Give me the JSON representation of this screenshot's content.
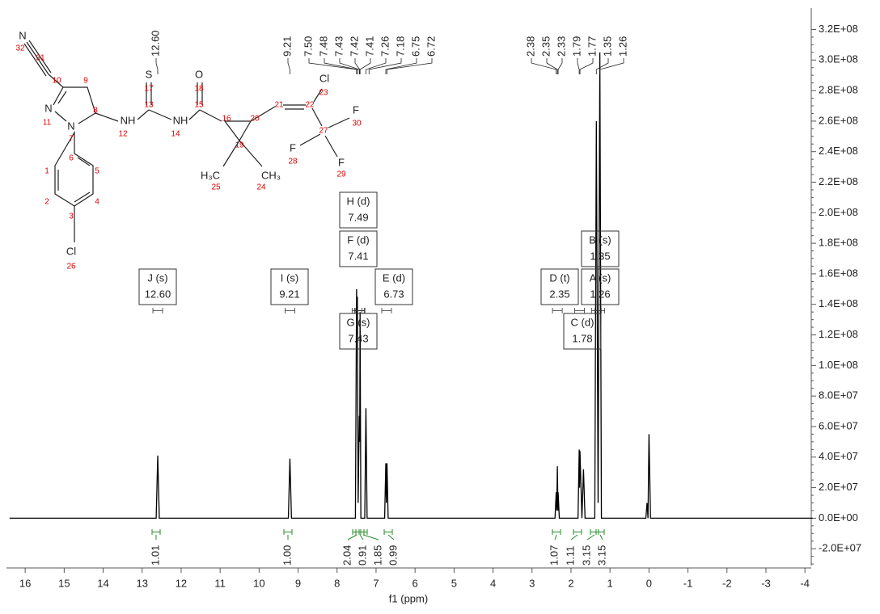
{
  "chart_data": {
    "type": "nmr",
    "xlabel": "f1 (ppm)",
    "color": "#000000",
    "xlim": [
      16.48,
      -4.1
    ],
    "ylim": [
      -31000000,
      334000000
    ],
    "xticks": [
      16,
      15,
      14,
      13,
      12,
      11,
      10,
      9,
      8,
      7,
      6,
      5,
      4,
      3,
      2,
      1,
      0,
      -1,
      -2,
      -3,
      -4
    ],
    "yticks": [
      {
        "value": 320000000,
        "label": "3.2E+08"
      },
      {
        "value": 300000000,
        "label": "3.0E+08"
      },
      {
        "value": 280000000,
        "label": "2.8E+08"
      },
      {
        "value": 260000000,
        "label": "2.6E+08"
      },
      {
        "value": 240000000,
        "label": "2.4E+08"
      },
      {
        "value": 220000000,
        "label": "2.2E+08"
      },
      {
        "value": 200000000,
        "label": "2.0E+08"
      },
      {
        "value": 180000000,
        "label": "1.8E+08"
      },
      {
        "value": 160000000,
        "label": "1.6E+08"
      },
      {
        "value": 140000000,
        "label": "1.4E+08"
      },
      {
        "value": 120000000,
        "label": "1.2E+08"
      },
      {
        "value": 100000000,
        "label": "1.0E+08"
      },
      {
        "value": 80000000,
        "label": "8.0E+07"
      },
      {
        "value": 60000000,
        "label": "6.0E+07"
      },
      {
        "value": 40000000,
        "label": "4.0E+07"
      },
      {
        "value": 20000000,
        "label": "2.0E+07"
      },
      {
        "value": 0,
        "label": "0.0E+00"
      },
      {
        "value": -20000000,
        "label": "-2.0E+07"
      }
    ],
    "x": [
      16.4,
      12.64,
      12.6,
      12.56,
      9.25,
      9.21,
      9.17,
      7.53,
      7.5,
      7.49,
      7.48,
      7.46,
      7.43,
      7.42,
      7.41,
      7.39,
      7.29,
      7.26,
      7.23,
      6.78,
      6.75,
      6.735,
      6.72,
      6.69,
      2.41,
      2.38,
      2.365,
      2.35,
      2.335,
      2.33,
      2.3,
      1.82,
      1.79,
      1.78,
      1.77,
      1.72,
      1.68,
      1.64,
      1.39,
      1.35,
      1.305,
      1.26,
      1.22,
      0.08,
      0.05,
      0.025,
      0,
      -0.04,
      -4.2
    ],
    "values": [
      0,
      0,
      41000000,
      0,
      0,
      39000000,
      0,
      0,
      150000000,
      120000000,
      145000000,
      10000000,
      67000000,
      50000000,
      135000000,
      0,
      0,
      72000000,
      0,
      0,
      36000000,
      10000000,
      36000000,
      0,
      0,
      17000000,
      5000000,
      34000000,
      5000000,
      17000000,
      0,
      0,
      45000000,
      20000000,
      44000000,
      0,
      32000000,
      0,
      0,
      260000000,
      10000000,
      305000000,
      0,
      0,
      10000000,
      0,
      55000000,
      0,
      0
    ],
    "peak_labels": [
      {
        "value": 12.6,
        "label": "12.60"
      },
      {
        "value": 9.21,
        "label": "9.21"
      },
      {
        "value": 7.5,
        "label": "7.50"
      },
      {
        "value": 7.48,
        "label": "7.48"
      },
      {
        "value": 7.43,
        "label": "7.43"
      },
      {
        "value": 7.42,
        "label": "7.42"
      },
      {
        "value": 7.41,
        "label": "7.41"
      },
      {
        "value": 7.26,
        "label": "7.26"
      },
      {
        "value": 7.18,
        "label": "7.18"
      },
      {
        "value": 6.75,
        "label": "6.75"
      },
      {
        "value": 6.72,
        "label": "6.72"
      },
      {
        "value": 2.38,
        "label": "2.38"
      },
      {
        "value": 2.35,
        "label": "2.35"
      },
      {
        "value": 2.33,
        "label": "2.33"
      },
      {
        "value": 1.79,
        "label": "1.79"
      },
      {
        "value": 1.77,
        "label": "1.77"
      },
      {
        "value": 1.35,
        "label": "1.35"
      },
      {
        "value": 1.26,
        "label": "1.26"
      }
    ],
    "multiplets": [
      {
        "name": "J (s)",
        "value": 12.6,
        "value_label": "12.60"
      },
      {
        "name": "I (s)",
        "value": 9.21,
        "value_label": "9.21"
      },
      {
        "name": "H (d)",
        "value": 7.49,
        "value_label": "7.49"
      },
      {
        "name": "F (d)",
        "value": 7.41,
        "value_label": "7.41"
      },
      {
        "name": "E (d)",
        "value": 6.73,
        "value_label": "6.73"
      },
      {
        "name": "G (s)",
        "value": 7.43,
        "value_label": "7.43"
      },
      {
        "name": "D (t)",
        "value": 2.35,
        "value_label": "2.35"
      },
      {
        "name": "B (s)",
        "value": 1.35,
        "value_label": "1.35"
      },
      {
        "name": "A (s)",
        "value": 1.26,
        "value_label": "1.26"
      },
      {
        "name": "C (d)",
        "value": 1.78,
        "value_label": "1.78"
      }
    ],
    "integrals": {
      "values": [
        1.01,
        1.0,
        2.04,
        0.91,
        1.85,
        0.99,
        1.07,
        1.11,
        3.15,
        3.15
      ],
      "value_labels": [
        "1.01",
        "1.00",
        "2.04",
        "0.91",
        "1.85",
        "0.99",
        "1.07",
        "1.11",
        "3.15",
        "3.15"
      ]
    },
    "molecule": {
      "atoms": [
        "N",
        "N",
        "N",
        "NH",
        "S",
        "NH",
        "O",
        "Cl",
        "Cl",
        "F",
        "F",
        "F",
        "H₃C",
        "CH₃"
      ],
      "numbers": [
        "32",
        "31",
        "10",
        "9",
        "8",
        "11",
        "7",
        "6",
        "5",
        "4",
        "3",
        "2",
        "1",
        "26",
        "12",
        "17",
        "13",
        "14",
        "18",
        "15",
        "16",
        "20",
        "19",
        "25",
        "24",
        "21",
        "22",
        "23",
        "27",
        "30",
        "28",
        "29"
      ]
    }
  }
}
